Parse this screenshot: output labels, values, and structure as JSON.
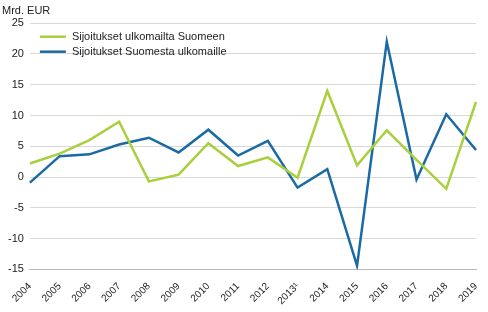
{
  "chart_data": {
    "type": "line",
    "ylabel": "Mrd. EUR",
    "categories": [
      "2004",
      "2005",
      "2006",
      "2007",
      "2008",
      "2009",
      "2010",
      "2011",
      "2012",
      "2013¹",
      "2014",
      "2015",
      "2016",
      "2017",
      "2018",
      "2019"
    ],
    "series": [
      {
        "name": "Sijoitukset ulkomailta Suomeen",
        "color": "#a8cf3c",
        "values": [
          2.2,
          3.8,
          6.0,
          9.0,
          -0.7,
          0.4,
          5.5,
          1.8,
          3.2,
          -0.1,
          14.0,
          1.9,
          7.6,
          2.8,
          -1.9,
          12.2
        ]
      },
      {
        "name": "Sijoitukset Suomesta ulkomaille",
        "color": "#1a6aa3",
        "values": [
          -0.9,
          3.4,
          3.7,
          5.3,
          6.4,
          4.0,
          7.7,
          3.5,
          5.9,
          -1.7,
          1.3,
          -14.4,
          22.0,
          -0.4,
          10.2,
          4.4
        ]
      }
    ],
    "ylim": [
      -15,
      25
    ],
    "yticks": [
      -15,
      -10,
      -5,
      0,
      5,
      10,
      15,
      20,
      25
    ],
    "grid": true,
    "legend": "upper left"
  }
}
